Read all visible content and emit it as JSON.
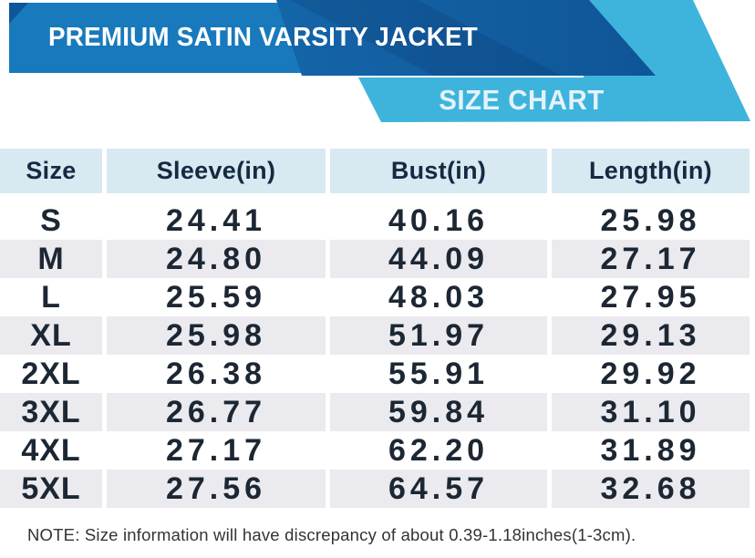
{
  "chart_data": {
    "type": "table",
    "title": "PREMIUM SATIN VARSITY JACKET",
    "subtitle": "SIZE CHART",
    "columns": [
      "Size",
      "Sleeve(in)",
      "Bust(in)",
      "Length(in)"
    ],
    "rows": [
      [
        "S",
        "24.41",
        "40.16",
        "25.98"
      ],
      [
        "M",
        "24.80",
        "44.09",
        "27.17"
      ],
      [
        "L",
        "25.59",
        "48.03",
        "27.95"
      ],
      [
        "XL",
        "25.98",
        "51.97",
        "29.13"
      ],
      [
        "2XL",
        "26.38",
        "55.91",
        "29.92"
      ],
      [
        "3XL",
        "26.77",
        "59.84",
        "31.10"
      ],
      [
        "4XL",
        "27.17",
        "62.20",
        "31.89"
      ],
      [
        "5XL",
        "27.56",
        "64.57",
        "32.68"
      ]
    ],
    "note": "NOTE: Size information will have discrepancy of about 0.39-1.18inches(1-3cm).",
    "layout_hints": {
      "striped_rows": true,
      "stripe_pattern": "white/gray alternating starting white at row S",
      "column_alignment": "center"
    }
  },
  "colors": {
    "band_blue": "#1879BD",
    "ribbon_dark": "#1565A9",
    "ribbon_dark_deep": "#0F5698",
    "cyan": "#3EB4DC",
    "title_text": "#FFFFFF",
    "subtitle_text": "#E4F3FA",
    "header_bg": "#D8E9F2",
    "header_text": "#152A42",
    "row_bg": "#FFFFFF",
    "row_alt_bg": "#EAEAEF",
    "cell_text": "#1C2733",
    "note_text": "#333333"
  }
}
